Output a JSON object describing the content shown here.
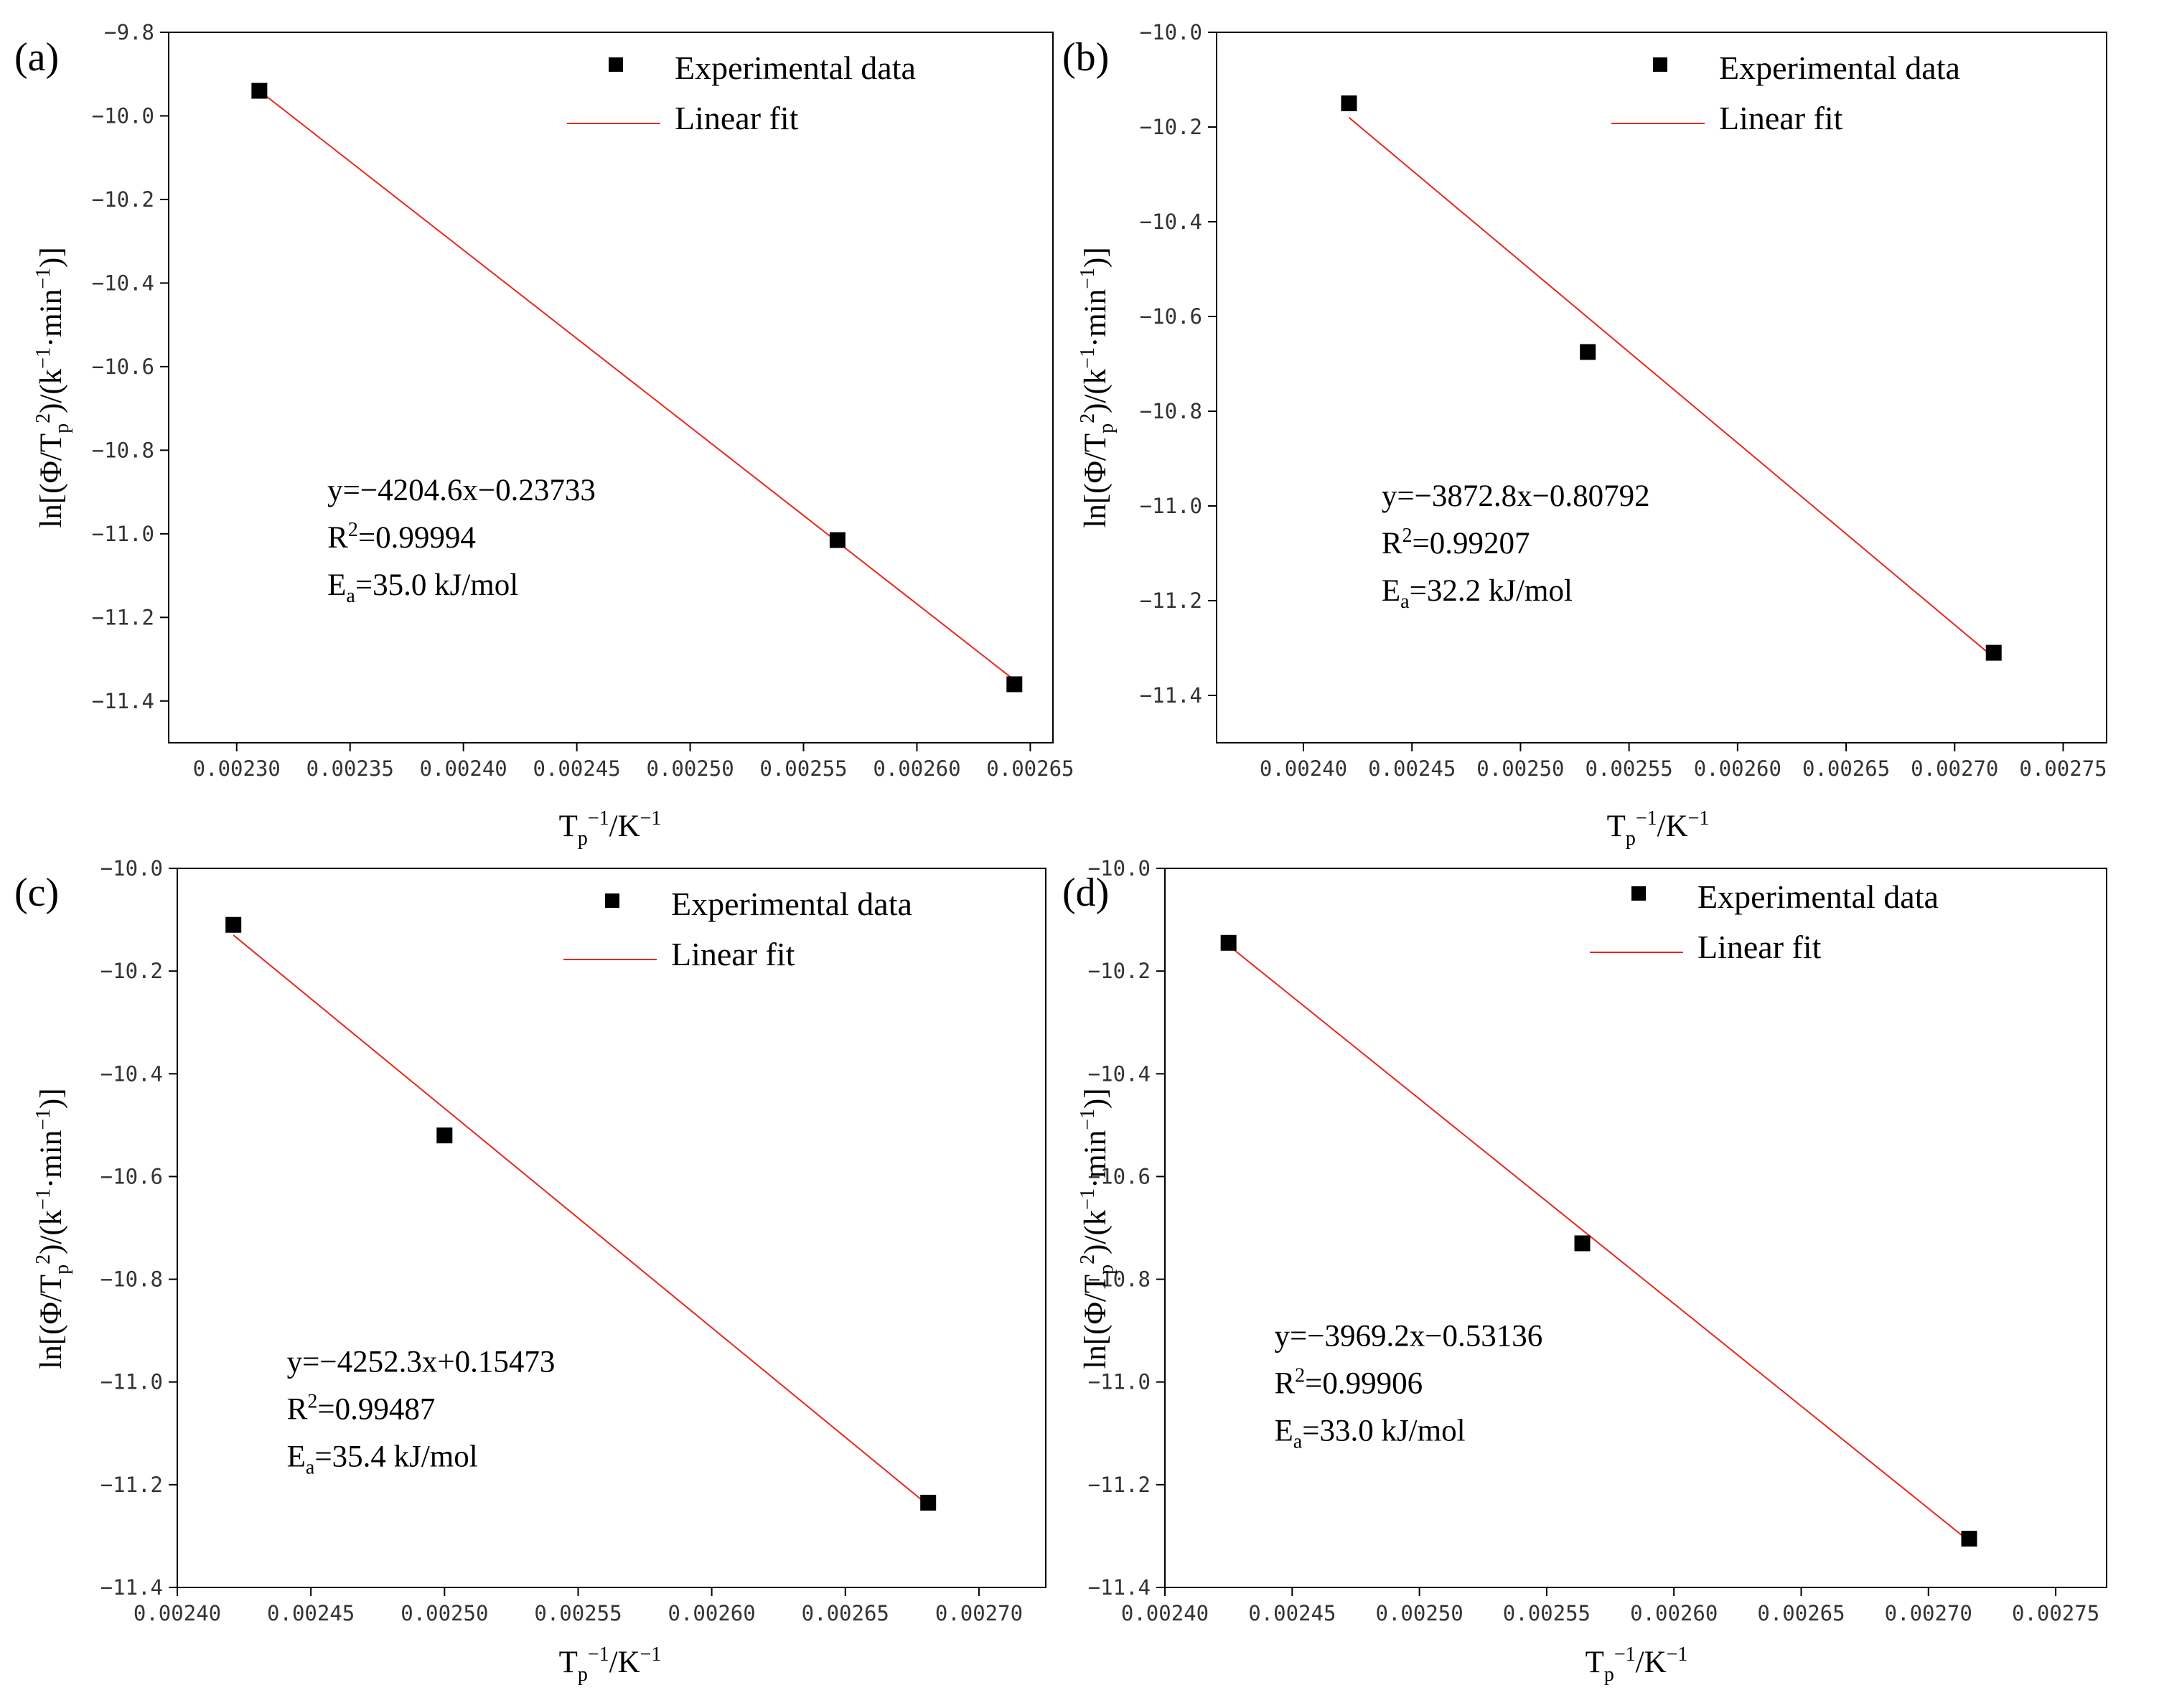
{
  "chart_data": [
    {
      "panel": "(a)",
      "type": "scatter",
      "x": [
        0.00231,
        0.002565,
        0.002643
      ],
      "y": [
        -9.94,
        -11.015,
        -11.36
      ],
      "fit": {
        "x": [
          0.00231,
          0.002643
        ],
        "y": [
          -9.94,
          -11.35
        ]
      },
      "xlim": [
        0.00227,
        0.00266
      ],
      "ylim": [
        -11.5,
        -9.8
      ],
      "xticks": [
        "0.00230",
        "0.00235",
        "0.00240",
        "0.00245",
        "0.00250",
        "0.00255",
        "0.00260",
        "0.00265"
      ],
      "yticks": [
        "-9.8",
        "-10.0",
        "-10.2",
        "-10.4",
        "-10.6",
        "-10.8",
        "-11.0",
        "-11.2",
        "-11.4"
      ],
      "xtick_values": [
        0.0023,
        0.00235,
        0.0024,
        0.00245,
        0.0025,
        0.00255,
        0.0026,
        0.00265
      ],
      "ytick_values": [
        -9.8,
        -10.0,
        -10.2,
        -10.4,
        -10.6,
        -10.8,
        -11.0,
        -11.2,
        -11.4
      ],
      "equation": "y=−4204.6x−0.23733",
      "r2": "=0.99994",
      "ea": "=35.0 kJ/mol",
      "ann_anchor": [
        0.00234,
        -10.92
      ]
    },
    {
      "panel": "(b)",
      "type": "scatter",
      "x": [
        0.002421,
        0.002531,
        0.002718
      ],
      "y": [
        -10.15,
        -10.675,
        -11.31
      ],
      "fit": {
        "x": [
          0.002421,
          0.002718
        ],
        "y": [
          -10.18,
          -11.32
        ]
      },
      "xlim": [
        0.00236,
        0.00277
      ],
      "ylim": [
        -11.5,
        -10.0
      ],
      "xticks": [
        "0.00240",
        "0.00245",
        "0.00250",
        "0.00255",
        "0.00260",
        "0.00265",
        "0.00270",
        "0.00275"
      ],
      "yticks": [
        "-10.0",
        "-10.2",
        "-10.4",
        "-10.6",
        "-10.8",
        "-11.0",
        "-11.2",
        "-11.4"
      ],
      "xtick_values": [
        0.0024,
        0.00245,
        0.0025,
        0.00255,
        0.0026,
        0.00265,
        0.0027,
        0.00275
      ],
      "ytick_values": [
        -10.0,
        -10.2,
        -10.4,
        -10.6,
        -10.8,
        -11.0,
        -11.2,
        -11.4
      ],
      "equation": "y=−3872.8x−0.80792",
      "r2": "=0.99207",
      "ea": "=32.2 kJ/mol",
      "ann_anchor": [
        0.002436,
        -11.0
      ]
    },
    {
      "panel": "(c)",
      "type": "scatter",
      "x": [
        0.002421,
        0.0025,
        0.002681
      ],
      "y": [
        -10.11,
        -10.52,
        -11.235
      ],
      "fit": {
        "x": [
          0.002421,
          0.002681
        ],
        "y": [
          -10.13,
          -11.24
        ]
      },
      "xlim": [
        0.0024,
        0.002725
      ],
      "ylim": [
        -11.4,
        -10.0
      ],
      "xticks": [
        "0.00240",
        "0.00245",
        "0.00250",
        "0.00255",
        "0.00260",
        "0.00265",
        "0.00270"
      ],
      "yticks": [
        "-10.0",
        "-10.2",
        "-10.4",
        "-10.6",
        "-10.8",
        "-11.0",
        "-11.2",
        "-11.4"
      ],
      "xtick_values": [
        0.0024,
        0.00245,
        0.0025,
        0.00255,
        0.0026,
        0.00265,
        0.0027
      ],
      "ytick_values": [
        -10.0,
        -10.2,
        -10.4,
        -10.6,
        -10.8,
        -11.0,
        -11.2,
        -11.4
      ],
      "equation": "y=−4252.3x+0.15473",
      "r2": "=0.99487",
      "ea": "=35.4 kJ/mol",
      "ann_anchor": [
        0.002441,
        -10.98
      ]
    },
    {
      "panel": "(d)",
      "type": "scatter",
      "x": [
        0.002425,
        0.002564,
        0.002716
      ],
      "y": [
        -10.145,
        -10.73,
        -11.305
      ],
      "fit": {
        "x": [
          0.002425,
          0.002716
        ],
        "y": [
          -10.15,
          -11.31
        ]
      },
      "xlim": [
        0.0024,
        0.00277
      ],
      "ylim": [
        -11.4,
        -10.0
      ],
      "xticks": [
        "0.00240",
        "0.00245",
        "0.00250",
        "0.00255",
        "0.00260",
        "0.00265",
        "0.00270",
        "0.00275"
      ],
      "yticks": [
        "-10.0",
        "-10.2",
        "-10.4",
        "-10.6",
        "-10.8",
        "-11.0",
        "-11.2",
        "-11.4"
      ],
      "xtick_values": [
        0.0024,
        0.00245,
        0.0025,
        0.00255,
        0.0026,
        0.00265,
        0.0027,
        0.00275
      ],
      "ytick_values": [
        -10.0,
        -10.2,
        -10.4,
        -10.6,
        -10.8,
        -11.0,
        -11.2,
        -11.4
      ],
      "equation": "y=−3969.2x−0.53136",
      "r2": "=0.99906",
      "ea": "=33.0 kJ/mol",
      "ann_anchor": [
        0.002443,
        -10.93
      ]
    }
  ],
  "labels": {
    "legend_points": "Experimental data",
    "legend_line": "Linear fit",
    "r_symbol": "R",
    "r_sup": "2",
    "e_symbol": "E",
    "e_sub": "a",
    "ylabel_parts": [
      "ln[(Φ/T",
      "p",
      "2",
      ")/(k",
      "−1",
      "·min",
      "−1",
      ")]"
    ],
    "xlabel_parts": [
      "T",
      "p",
      "−1",
      "/K",
      "−1"
    ]
  },
  "colors": {
    "points": "#000000",
    "fit": "#e8281e",
    "axes": "#000000"
  }
}
